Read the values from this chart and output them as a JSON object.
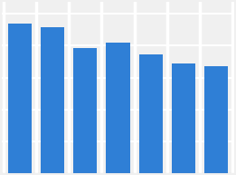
{
  "values": [
    18.8,
    18.35,
    15.75,
    16.4,
    14.9,
    13.8,
    13.4
  ],
  "bar_color": "#2F7FD6",
  "background_color": "#f0f0f0",
  "grid_color": "#ffffff",
  "ylim": [
    0,
    21.5
  ],
  "bar_width": 0.72,
  "num_bars": 7,
  "border_color": "#ffffff",
  "border_linewidth": 2.5
}
